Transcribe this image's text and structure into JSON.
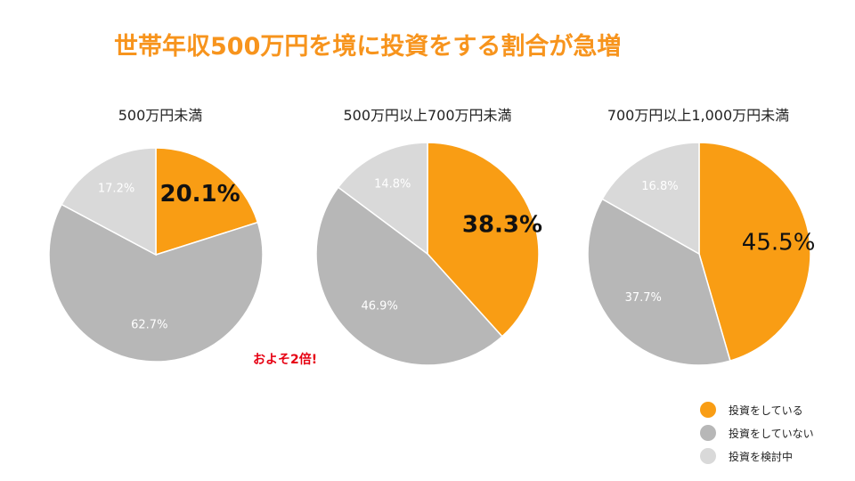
{
  "title": "世帯年収500万円を境に投資をする割合が急増",
  "callout": "およそ2倍!",
  "colors": {
    "investing": "#f99d14",
    "not_investing": "#b7b7b7",
    "considering": "#d9d9d9"
  },
  "legend": [
    {
      "label": "投資をしている",
      "color": "#f99d14"
    },
    {
      "label": "投資をしていない",
      "color": "#b7b7b7"
    },
    {
      "label": "投資を検討中",
      "color": "#d9d9d9"
    }
  ],
  "chart_data": [
    {
      "type": "pie",
      "title": "500万円未満",
      "slices": [
        {
          "label": "投資をしている",
          "value": 20.1,
          "display": "20.1%",
          "color": "#f99d14"
        },
        {
          "label": "投資をしていない",
          "value": 62.7,
          "display": "62.7%",
          "color": "#b7b7b7"
        },
        {
          "label": "投資を検討中",
          "value": 17.2,
          "display": "17.2%",
          "color": "#d9d9d9"
        }
      ],
      "legend_position": "bottom-right"
    },
    {
      "type": "pie",
      "title": "500万円以上700万円未満",
      "slices": [
        {
          "label": "投資をしている",
          "value": 38.3,
          "display": "38.3%",
          "color": "#f99d14"
        },
        {
          "label": "投資をしていない",
          "value": 46.9,
          "display": "46.9%",
          "color": "#b7b7b7"
        },
        {
          "label": "投資を検討中",
          "value": 14.8,
          "display": "14.8%",
          "color": "#d9d9d9"
        }
      ],
      "legend_position": "bottom-right"
    },
    {
      "type": "pie",
      "title": "700万円以上1,000万円未満",
      "slices": [
        {
          "label": "投資をしている",
          "value": 45.5,
          "display": "45.5%",
          "color": "#f99d14"
        },
        {
          "label": "投資をしていない",
          "value": 37.7,
          "display": "37.7%",
          "color": "#b7b7b7"
        },
        {
          "label": "投資を検討中",
          "value": 16.8,
          "display": "16.8%",
          "color": "#d9d9d9"
        }
      ],
      "legend_position": "bottom-right"
    }
  ]
}
